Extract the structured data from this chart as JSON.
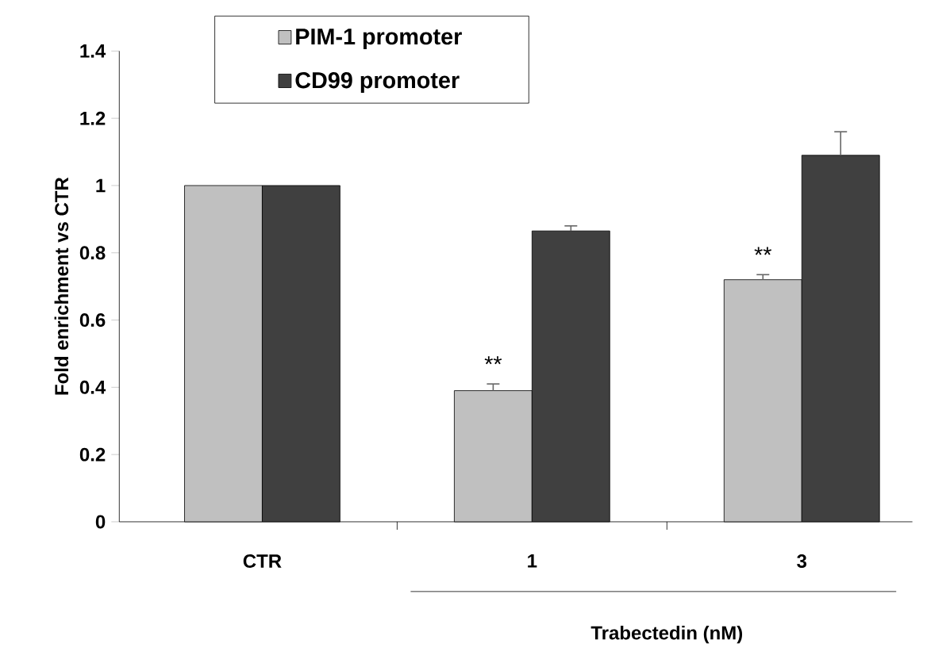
{
  "chart_data": {
    "type": "bar",
    "categories": [
      "CTR",
      "1",
      "3"
    ],
    "series": [
      {
        "name": "PIM-1 promoter",
        "color": "#c0c0c0",
        "values": [
          1,
          0.39,
          0.72
        ],
        "errors": [
          null,
          0.02,
          0.015
        ]
      },
      {
        "name": "CD99 promoter",
        "color": "#404040",
        "values": [
          1,
          0.865,
          1.09
        ],
        "errors": [
          null,
          0.015,
          0.07
        ]
      }
    ],
    "ylabel": "Fold enrichment vs CTR",
    "xlabel": "Trabectedin (nM)",
    "ylim": [
      0,
      1.4
    ],
    "yticks": [
      0,
      0.2,
      0.4,
      0.6,
      0.8,
      1,
      1.2,
      1.4
    ],
    "annotations": [
      {
        "text": "**",
        "x": "1",
        "y": 0.39
      },
      {
        "text": "**",
        "x": "3",
        "y": 0.72
      }
    ],
    "legend": "top left",
    "grid": false
  }
}
